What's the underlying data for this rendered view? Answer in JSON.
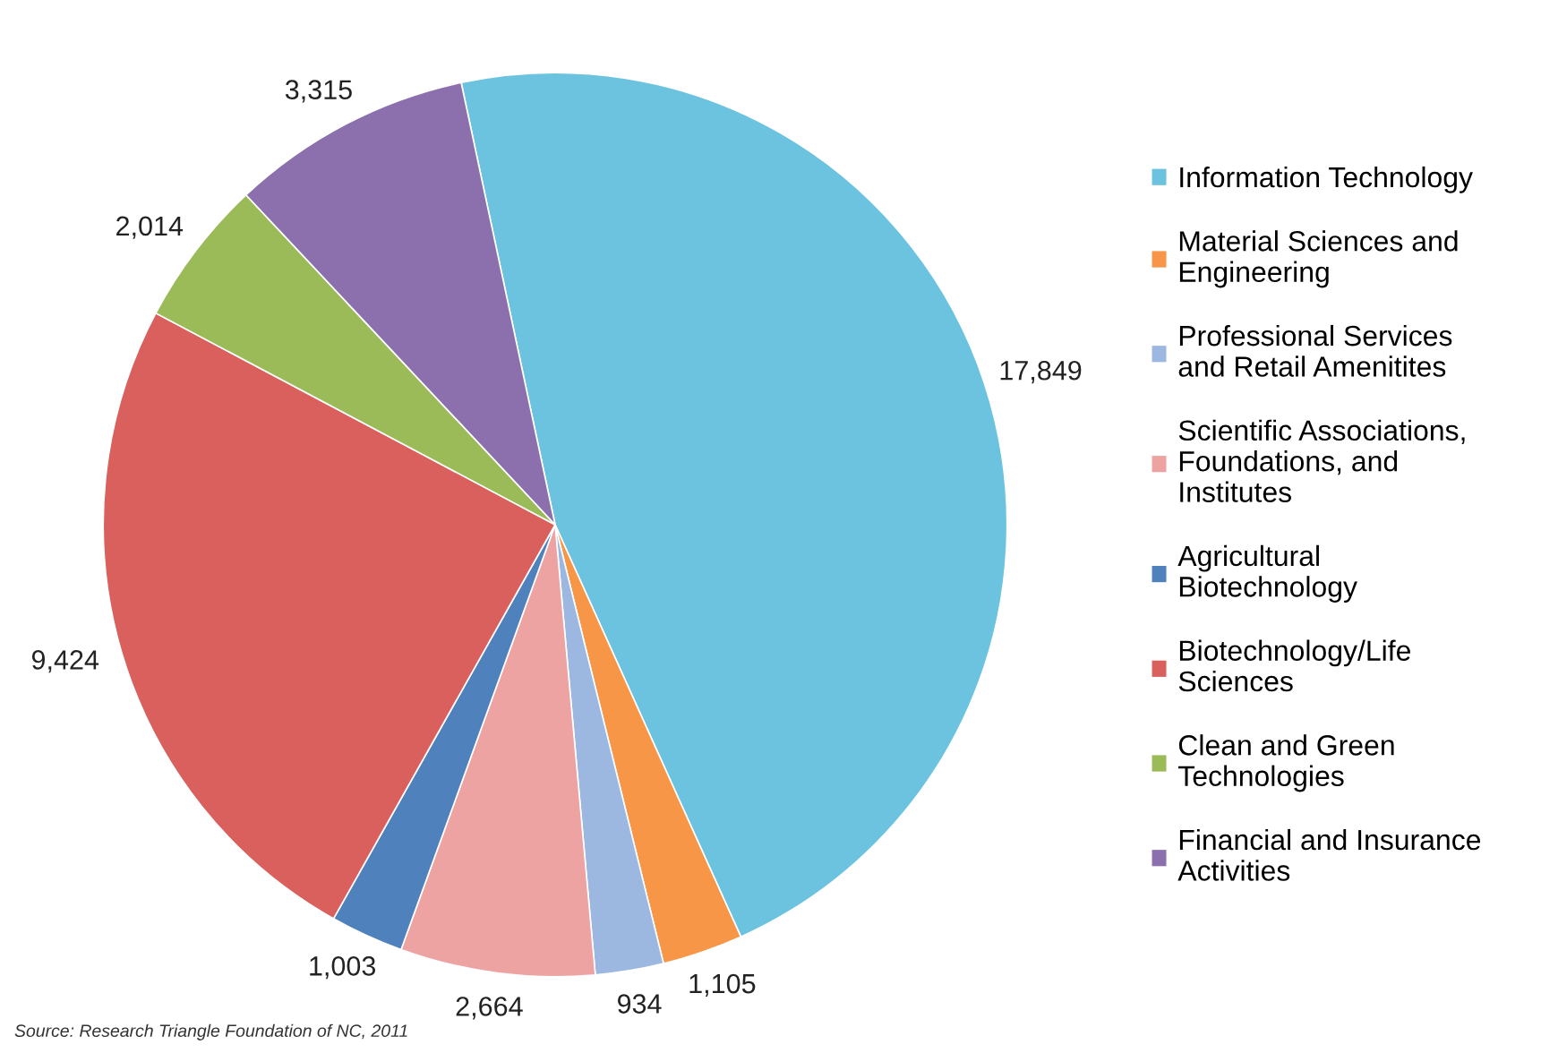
{
  "chart_data": {
    "type": "pie",
    "categories": [
      "Information Technology",
      "Material Sciences and\nEngineering",
      "Professional Services\nand Retail Amenitites",
      "Scientific Associations,\nFoundations, and\nInstitutes",
      "Agricultural\nBiotechnology",
      "Biotechnology/Life\nSciences",
      "Clean and Green\nTechnologies",
      "Financial and Insurance\nActivities"
    ],
    "values": [
      17849,
      1105,
      934,
      2664,
      1003,
      9424,
      2014,
      3315
    ],
    "value_labels": [
      "17,849",
      "1,105",
      "934",
      "2,664",
      "1,003",
      "9,424",
      "2,014",
      "3,315"
    ],
    "colors": [
      "#6cc3e0",
      "#f79646",
      "#9db8e0",
      "#eea3a3",
      "#4f81bd",
      "#d9605c",
      "#9bbb59",
      "#8b70ad"
    ],
    "legend": "right",
    "annotations": [
      "Source: Research Triangle Foundation of NC, 2011"
    ]
  }
}
